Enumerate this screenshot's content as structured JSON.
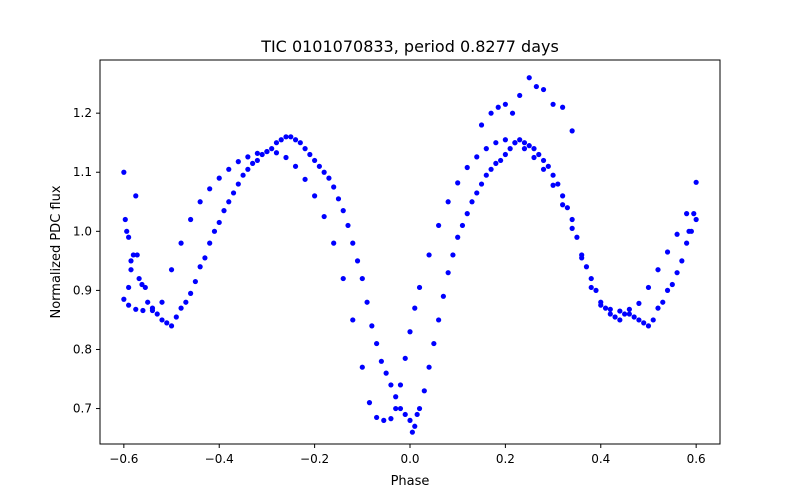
{
  "chart_data": {
    "type": "scatter",
    "title": "TIC 0101070833, period 0.8277 days",
    "xlabel": "Phase",
    "ylabel": "Normalized PDC flux",
    "xlim": [
      -0.65,
      0.65
    ],
    "ylim": [
      0.64,
      1.29
    ],
    "xticks": [
      -0.6,
      -0.4,
      -0.2,
      0.0,
      0.2,
      0.4,
      0.6
    ],
    "xtick_labels": [
      "−0.6",
      "−0.4",
      "−0.2",
      "0.0",
      "0.2",
      "0.4",
      "0.6"
    ],
    "yticks": [
      0.7,
      0.8,
      0.9,
      1.0,
      1.1,
      1.2
    ],
    "ytick_labels": [
      "0.7",
      "0.8",
      "0.9",
      "1.0",
      "1.1",
      "1.2"
    ],
    "grid": false,
    "color": "#0000ff",
    "series": [
      {
        "points": [
          [
            -0.6,
            0.885
          ],
          [
            -0.59,
            0.875
          ],
          [
            -0.575,
            0.868
          ],
          [
            -0.56,
            0.866
          ],
          [
            -0.54,
            0.866
          ],
          [
            -0.52,
            0.88
          ],
          [
            -0.5,
            0.935
          ],
          [
            -0.48,
            0.98
          ],
          [
            -0.46,
            1.02
          ],
          [
            -0.44,
            1.05
          ],
          [
            -0.42,
            1.072
          ],
          [
            -0.4,
            1.09
          ],
          [
            -0.38,
            1.105
          ],
          [
            -0.36,
            1.118
          ],
          [
            -0.34,
            1.126
          ],
          [
            -0.32,
            1.132
          ],
          [
            -0.3,
            1.135
          ],
          [
            -0.28,
            1.133
          ],
          [
            -0.26,
            1.125
          ],
          [
            -0.24,
            1.11
          ],
          [
            -0.22,
            1.088
          ],
          [
            -0.2,
            1.06
          ],
          [
            -0.18,
            1.025
          ],
          [
            -0.16,
            0.98
          ],
          [
            -0.14,
            0.92
          ],
          [
            -0.12,
            0.85
          ],
          [
            -0.1,
            0.77
          ],
          [
            -0.085,
            0.71
          ],
          [
            -0.07,
            0.685
          ],
          [
            -0.055,
            0.68
          ],
          [
            -0.04,
            0.683
          ],
          [
            -0.03,
            0.7
          ],
          [
            -0.02,
            0.74
          ],
          [
            -0.01,
            0.785
          ],
          [
            0.0,
            0.83
          ],
          [
            0.01,
            0.87
          ],
          [
            0.02,
            0.905
          ],
          [
            0.04,
            0.96
          ],
          [
            0.06,
            1.01
          ],
          [
            0.08,
            1.05
          ],
          [
            0.1,
            1.082
          ],
          [
            0.12,
            1.108
          ],
          [
            0.14,
            1.126
          ],
          [
            0.16,
            1.14
          ],
          [
            0.18,
            1.15
          ],
          [
            0.2,
            1.155
          ],
          [
            0.22,
            1.15
          ],
          [
            0.24,
            1.14
          ],
          [
            0.26,
            1.125
          ],
          [
            0.28,
            1.105
          ],
          [
            0.3,
            1.078
          ],
          [
            0.32,
            1.045
          ],
          [
            0.34,
            1.005
          ],
          [
            0.36,
            0.955
          ],
          [
            0.38,
            0.905
          ],
          [
            0.4,
            0.875
          ],
          [
            0.42,
            0.868
          ],
          [
            0.44,
            0.865
          ],
          [
            0.46,
            0.868
          ],
          [
            0.48,
            0.878
          ],
          [
            0.5,
            0.905
          ],
          [
            0.52,
            0.935
          ],
          [
            0.54,
            0.965
          ],
          [
            0.56,
            0.995
          ],
          [
            0.58,
            1.03
          ],
          [
            0.6,
            1.083
          ]
        ]
      },
      {
        "points": [
          [
            -0.6,
            1.1
          ],
          [
            -0.597,
            1.02
          ],
          [
            -0.594,
            1.0
          ],
          [
            -0.59,
            0.99
          ],
          [
            -0.585,
            0.95
          ],
          [
            -0.58,
            0.96
          ],
          [
            -0.575,
            1.06
          ],
          [
            -0.572,
            0.96
          ],
          [
            -0.568,
            0.92
          ],
          [
            -0.562,
            0.91
          ],
          [
            -0.555,
            0.905
          ],
          [
            -0.55,
            0.88
          ],
          [
            -0.54,
            0.87
          ],
          [
            -0.53,
            0.86
          ],
          [
            -0.52,
            0.85
          ],
          [
            -0.51,
            0.845
          ],
          [
            -0.5,
            0.84
          ],
          [
            -0.49,
            0.855
          ],
          [
            -0.48,
            0.87
          ],
          [
            -0.47,
            0.88
          ],
          [
            -0.46,
            0.895
          ],
          [
            -0.45,
            0.915
          ],
          [
            -0.44,
            0.94
          ],
          [
            -0.43,
            0.955
          ],
          [
            -0.42,
            0.98
          ],
          [
            -0.41,
            1.0
          ],
          [
            -0.4,
            1.015
          ],
          [
            -0.39,
            1.035
          ],
          [
            -0.38,
            1.05
          ],
          [
            -0.37,
            1.065
          ],
          [
            -0.36,
            1.08
          ],
          [
            -0.35,
            1.095
          ],
          [
            -0.34,
            1.105
          ],
          [
            -0.33,
            1.115
          ],
          [
            -0.32,
            1.12
          ],
          [
            -0.31,
            1.13
          ],
          [
            -0.3,
            1.135
          ],
          [
            -0.29,
            1.14
          ],
          [
            -0.28,
            1.15
          ],
          [
            -0.27,
            1.155
          ],
          [
            -0.26,
            1.16
          ],
          [
            -0.25,
            1.16
          ],
          [
            -0.24,
            1.155
          ],
          [
            -0.23,
            1.15
          ],
          [
            -0.22,
            1.14
          ],
          [
            -0.21,
            1.13
          ],
          [
            -0.2,
            1.12
          ],
          [
            -0.19,
            1.11
          ],
          [
            -0.18,
            1.1
          ],
          [
            -0.17,
            1.09
          ],
          [
            -0.16,
            1.075
          ],
          [
            -0.15,
            1.055
          ],
          [
            -0.14,
            1.035
          ],
          [
            -0.13,
            1.01
          ],
          [
            -0.12,
            0.98
          ],
          [
            -0.11,
            0.95
          ],
          [
            -0.1,
            0.92
          ],
          [
            -0.09,
            0.88
          ],
          [
            -0.08,
            0.84
          ],
          [
            -0.07,
            0.81
          ],
          [
            -0.06,
            0.78
          ],
          [
            -0.05,
            0.76
          ],
          [
            -0.04,
            0.74
          ],
          [
            -0.03,
            0.72
          ],
          [
            -0.02,
            0.7
          ],
          [
            -0.01,
            0.69
          ],
          [
            0.0,
            0.68
          ],
          [
            0.005,
            0.66
          ],
          [
            0.01,
            0.67
          ],
          [
            0.015,
            0.69
          ],
          [
            0.02,
            0.7
          ],
          [
            0.03,
            0.73
          ],
          [
            0.04,
            0.77
          ],
          [
            0.05,
            0.81
          ],
          [
            0.06,
            0.85
          ],
          [
            0.07,
            0.89
          ],
          [
            0.08,
            0.93
          ],
          [
            0.09,
            0.96
          ],
          [
            0.1,
            0.99
          ],
          [
            0.11,
            1.01
          ],
          [
            0.12,
            1.03
          ],
          [
            0.13,
            1.05
          ],
          [
            0.14,
            1.065
          ],
          [
            0.15,
            1.08
          ],
          [
            0.16,
            1.095
          ],
          [
            0.17,
            1.105
          ],
          [
            0.18,
            1.115
          ],
          [
            0.19,
            1.12
          ],
          [
            0.2,
            1.13
          ],
          [
            0.21,
            1.14
          ],
          [
            0.22,
            1.15
          ],
          [
            0.23,
            1.155
          ],
          [
            0.24,
            1.15
          ],
          [
            0.25,
            1.145
          ],
          [
            0.26,
            1.14
          ],
          [
            0.27,
            1.13
          ],
          [
            0.28,
            1.12
          ],
          [
            0.29,
            1.11
          ],
          [
            0.3,
            1.095
          ],
          [
            0.31,
            1.08
          ],
          [
            0.32,
            1.06
          ],
          [
            0.33,
            1.04
          ],
          [
            0.34,
            1.02
          ],
          [
            0.35,
            0.99
          ],
          [
            0.36,
            0.96
          ],
          [
            0.37,
            0.94
          ],
          [
            0.38,
            0.92
          ],
          [
            0.39,
            0.9
          ],
          [
            0.4,
            0.88
          ],
          [
            0.41,
            0.87
          ],
          [
            0.42,
            0.86
          ],
          [
            0.43,
            0.855
          ],
          [
            0.44,
            0.85
          ],
          [
            0.45,
            0.86
          ],
          [
            0.46,
            0.86
          ],
          [
            0.47,
            0.855
          ],
          [
            0.48,
            0.85
          ],
          [
            0.49,
            0.845
          ],
          [
            0.5,
            0.84
          ],
          [
            0.51,
            0.85
          ],
          [
            0.52,
            0.87
          ],
          [
            0.53,
            0.88
          ],
          [
            0.54,
            0.9
          ],
          [
            0.55,
            0.91
          ],
          [
            0.56,
            0.93
          ],
          [
            0.57,
            0.95
          ],
          [
            0.58,
            0.98
          ],
          [
            0.59,
            1.0
          ],
          [
            0.595,
            1.03
          ],
          [
            0.6,
            1.02
          ],
          [
            0.15,
            1.18
          ],
          [
            0.17,
            1.2
          ],
          [
            0.185,
            1.21
          ],
          [
            0.2,
            1.215
          ],
          [
            0.215,
            1.2
          ],
          [
            0.23,
            1.23
          ],
          [
            0.25,
            1.26
          ],
          [
            0.265,
            1.245
          ],
          [
            0.28,
            1.24
          ],
          [
            0.3,
            1.215
          ],
          [
            0.32,
            1.21
          ],
          [
            0.34,
            1.17
          ],
          [
            -0.59,
            0.905
          ],
          [
            -0.585,
            0.935
          ],
          [
            0.585,
            1.0
          ]
        ]
      }
    ]
  }
}
